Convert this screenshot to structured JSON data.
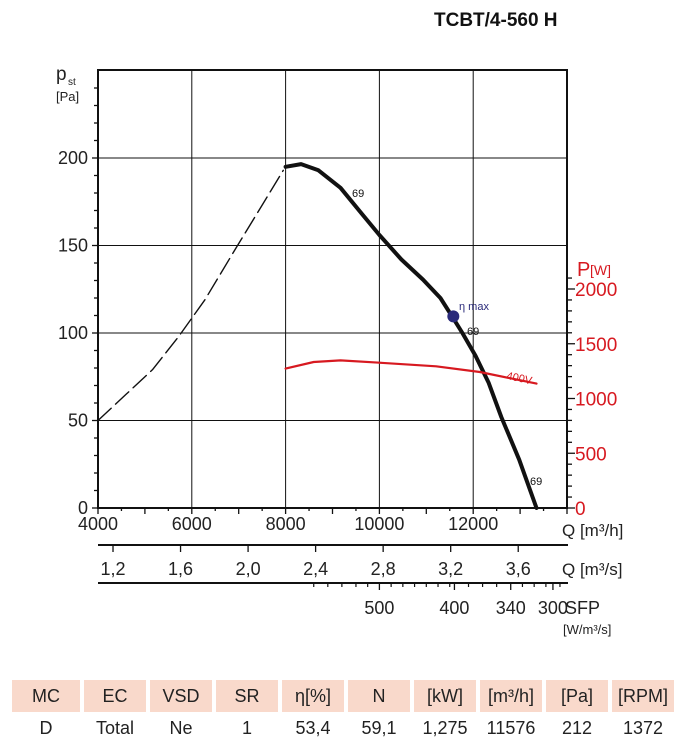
{
  "title": "TCBT/4-560 H",
  "chart_data": {
    "type": "line",
    "title": "TCBT/4-560 H",
    "xlabel": "Q [m³/h]",
    "ylabel_main": "p",
    "ylabel_sub": "st",
    "ylabel_unit": "[Pa]",
    "y2label_main": "P",
    "y2label_unit": "[W]",
    "xlim": [
      4000,
      14000
    ],
    "ylim": [
      0,
      250
    ],
    "y2lim": [
      0,
      2280
    ],
    "grid": true,
    "x_ticks": [
      "4000",
      "6000",
      "8000",
      "10000",
      "12000"
    ],
    "x_tick_values": [
      4000,
      6000,
      8000,
      10000,
      12000
    ],
    "y_ticks": [
      "0",
      "50",
      "100",
      "150",
      "200"
    ],
    "y_tick_values": [
      0,
      50,
      100,
      150,
      200
    ],
    "y2_ticks": [
      "0",
      "500",
      "1000",
      "1500",
      "2000"
    ],
    "y2_tick_values": [
      0,
      500,
      1000,
      1500,
      2000
    ],
    "q2_label": "Q [m³/s]",
    "q2_ticks": [
      "1,2",
      "1,6",
      "2,0",
      "2,4",
      "2,8",
      "3,2",
      "3,6"
    ],
    "q2_tick_values": [
      1.2,
      1.6,
      2.0,
      2.4,
      2.8,
      3.2,
      3.6
    ],
    "sfp_label": "SFP",
    "sfp_unit": "[W/m³/s]",
    "sfp_ticks": [
      "500",
      "400",
      "340",
      "300"
    ],
    "sfp_tick_q": [
      10000,
      11600,
      12800,
      13700
    ],
    "series": [
      {
        "name": "pressure-curve",
        "label": "69",
        "color": "#111111",
        "x": [
          8000,
          8330,
          8700,
          9170,
          9630,
          10000,
          10470,
          10930,
          11300,
          11550,
          11770,
          12050,
          12330,
          12600,
          12980,
          13350
        ],
        "y": [
          195,
          196.5,
          193,
          183,
          168,
          156,
          142,
          130.5,
          120,
          109.5,
          100,
          87,
          71.5,
          52,
          27.6,
          0
        ]
      },
      {
        "name": "stall-region-dashed",
        "color": "#111111",
        "x": [
          4000,
          4600,
          5160,
          5720,
          6280,
          6930,
          7490,
          7950
        ],
        "y": [
          50,
          65,
          79,
          98,
          119,
          148,
          172.6,
          193
        ]
      },
      {
        "name": "power-400v",
        "label": "400V",
        "axis": "y2",
        "color": "#d71920",
        "x": [
          8000,
          8600,
          9170,
          10000,
          11210,
          12140,
          13350
        ],
        "y": [
          1273,
          1333,
          1348,
          1327,
          1294,
          1242,
          1136
        ]
      }
    ],
    "curve_labels": [
      "69",
      "69",
      "69"
    ],
    "annotations": [
      {
        "text": "η max",
        "x": 11576,
        "y": 109.5,
        "color": "#2a2a7a"
      }
    ]
  },
  "table": {
    "headers": [
      "MC",
      "EC",
      "VSD",
      "SR",
      "η[%]",
      "N",
      "[kW]",
      "[m³/h]",
      "[Pa]",
      "[RPM]"
    ],
    "values": [
      "D",
      "Total",
      "Ne",
      "1",
      "53,4",
      "59,1",
      "1,275",
      "11576",
      "212",
      "1372"
    ],
    "header_color": "#f9d9cb"
  }
}
